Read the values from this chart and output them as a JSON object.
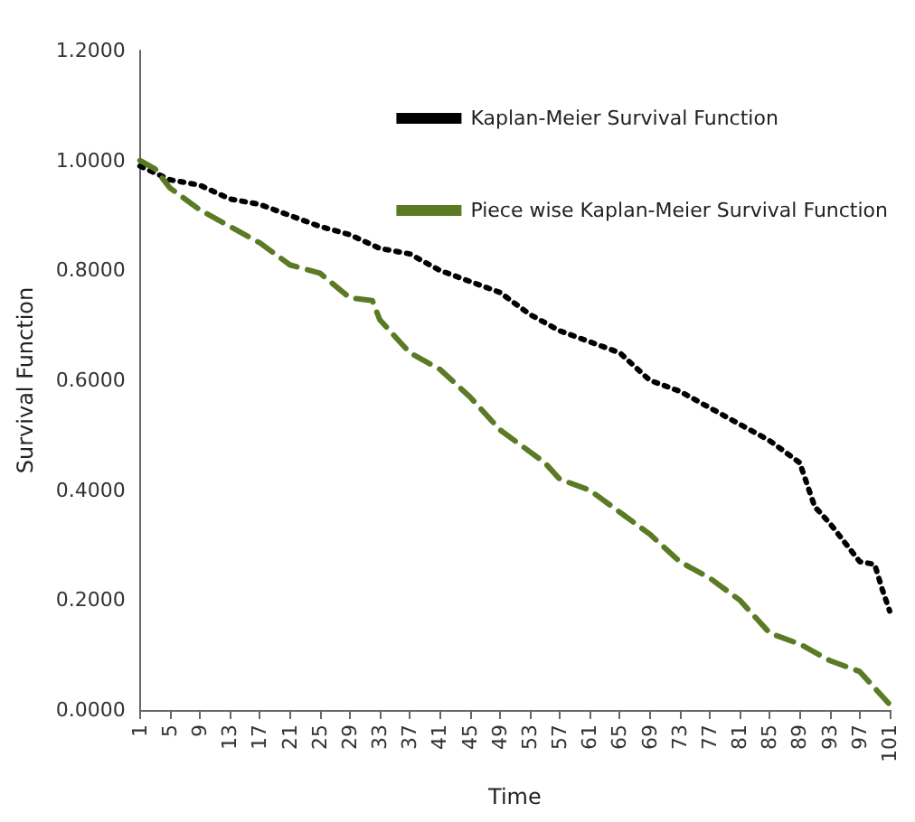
{
  "chart_data": {
    "type": "line",
    "xlabel": "Time",
    "ylabel": "Survival Function",
    "xlim": [
      1,
      101
    ],
    "xticks": [
      1,
      5,
      9,
      13,
      17,
      21,
      25,
      29,
      33,
      37,
      41,
      45,
      49,
      53,
      57,
      61,
      65,
      69,
      73,
      77,
      81,
      85,
      89,
      93,
      97,
      101
    ],
    "ylim": [
      0,
      1.2
    ],
    "yticks": [
      {
        "value": 0,
        "label": "0.0000"
      },
      {
        "value": 0.2,
        "label": "0.2000"
      },
      {
        "value": 0.4,
        "label": "0.4000"
      },
      {
        "value": 0.6,
        "label": "0.6000"
      },
      {
        "value": 0.8,
        "label": "0.8000"
      },
      {
        "value": 1.0,
        "label": "1.0000"
      },
      {
        "value": 1.2,
        "label": "1.2000"
      }
    ],
    "grid": false,
    "legend": "top right",
    "marker": "none",
    "series": [
      {
        "name": "Kaplan-Meier Survival Function",
        "color": "#000000",
        "line_style": "dotted",
        "x": [
          1,
          5,
          9,
          13,
          17,
          21,
          25,
          29,
          33,
          37,
          41,
          45,
          49,
          53,
          57,
          61,
          65,
          69,
          73,
          77,
          81,
          85,
          89,
          91,
          93,
          97,
          99,
          100,
          101
        ],
        "values": [
          0.99,
          0.965,
          0.955,
          0.93,
          0.92,
          0.9,
          0.88,
          0.865,
          0.84,
          0.83,
          0.8,
          0.78,
          0.76,
          0.72,
          0.69,
          0.67,
          0.65,
          0.6,
          0.58,
          0.55,
          0.52,
          0.49,
          0.45,
          0.37,
          0.34,
          0.27,
          0.265,
          0.22,
          0.18
        ]
      },
      {
        "name": "Piece wise Kaplan-Meier Survival Function",
        "color": "#5a7a23",
        "line_style": "dashed",
        "x": [
          1,
          3,
          5,
          9,
          13,
          17,
          21,
          25,
          29,
          32,
          33,
          37,
          41,
          45,
          49,
          53,
          55,
          57,
          61,
          65,
          69,
          73,
          77,
          81,
          85,
          89,
          93,
          97,
          99,
          101
        ],
        "values": [
          1.0,
          0.985,
          0.95,
          0.91,
          0.88,
          0.85,
          0.81,
          0.795,
          0.75,
          0.745,
          0.71,
          0.65,
          0.62,
          0.57,
          0.51,
          0.47,
          0.45,
          0.42,
          0.4,
          0.36,
          0.32,
          0.27,
          0.24,
          0.2,
          0.14,
          0.12,
          0.09,
          0.07,
          0.04,
          0.01
        ]
      }
    ]
  }
}
